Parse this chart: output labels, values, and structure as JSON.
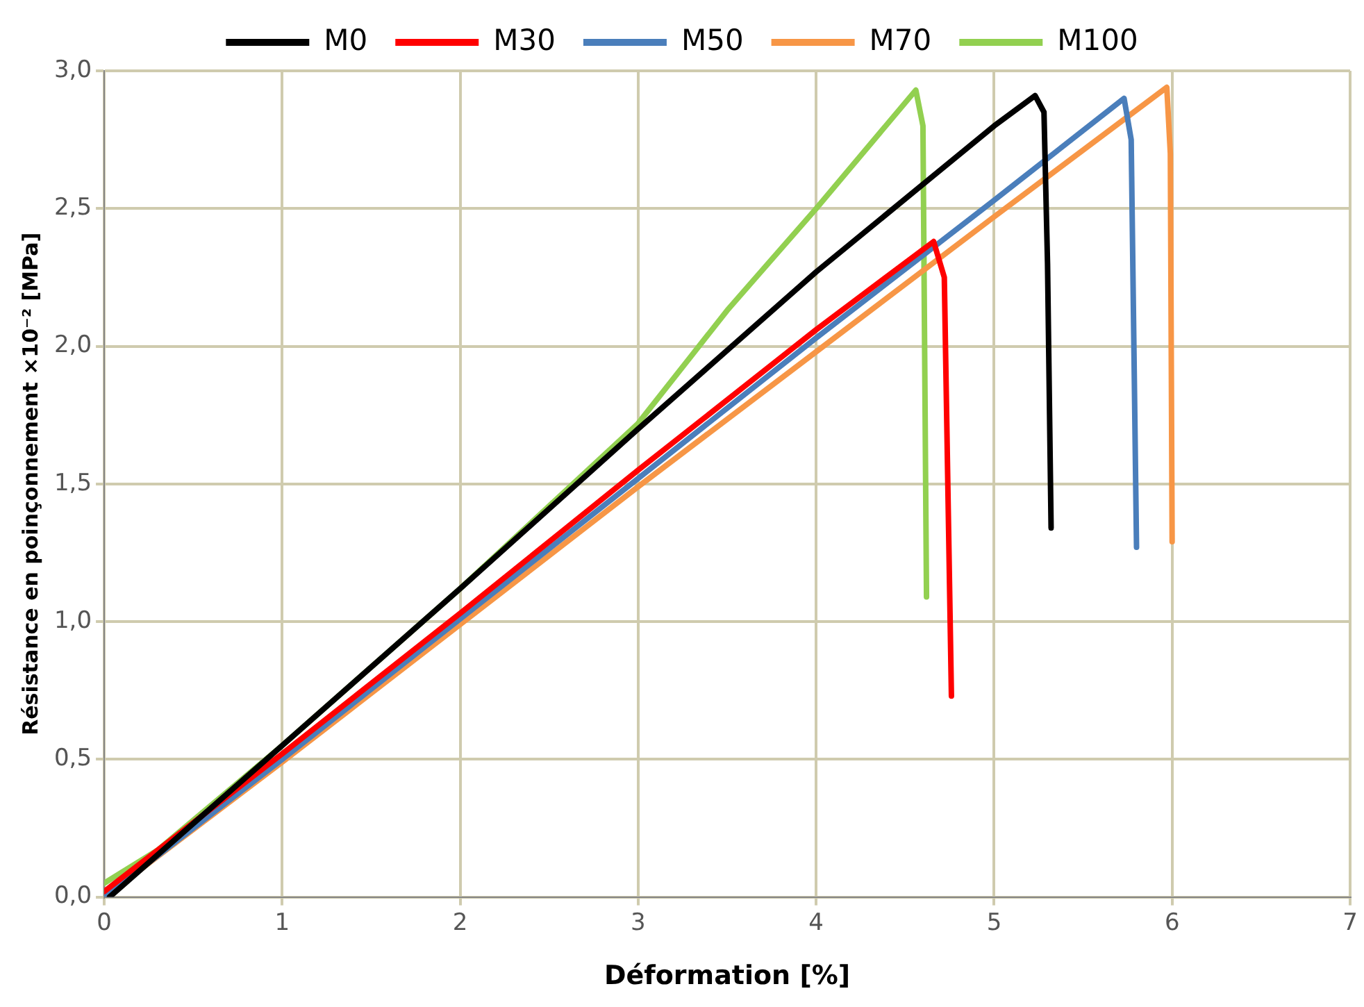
{
  "chart_data": {
    "type": "line",
    "xlabel": "Déformation [%]",
    "ylabel": "Résistance en poinçonnement ×10⁻² [MPa]",
    "xlim": [
      0,
      7
    ],
    "xticks": [
      0,
      1,
      2,
      3,
      4,
      5,
      6,
      7
    ],
    "ylim": [
      0,
      3
    ],
    "yticks": [
      {
        "value": 0,
        "label": "0,0"
      },
      {
        "value": 0.5,
        "label": "0,5"
      },
      {
        "value": 1,
        "label": "1,0"
      },
      {
        "value": 1.5,
        "label": "1,5"
      },
      {
        "value": 2,
        "label": "2,0"
      },
      {
        "value": 2.5,
        "label": "2,5"
      },
      {
        "value": 3,
        "label": "3,0"
      }
    ],
    "grid": true,
    "legend": "top",
    "marker": "none",
    "line_style": "solid",
    "series": [
      {
        "name": "M0",
        "color": "#000000",
        "x": [
          0.03,
          1,
          2,
          3,
          4,
          5,
          5.23,
          5.28,
          5.3,
          5.32
        ],
        "values": [
          0,
          0.55,
          1.12,
          1.7,
          2.27,
          2.8,
          2.91,
          2.85,
          2.3,
          1.34
        ]
      },
      {
        "name": "M30",
        "color": "#ff0000",
        "x": [
          0,
          1,
          2,
          3,
          4,
          4.66,
          4.72,
          4.76
        ],
        "values": [
          0.02,
          0.52,
          1.03,
          1.55,
          2.06,
          2.38,
          2.25,
          0.73
        ]
      },
      {
        "name": "M50",
        "color": "#4a7ebb",
        "x": [
          0,
          1,
          2,
          3,
          4,
          5,
          5.73,
          5.77,
          5.8
        ],
        "values": [
          0,
          0.5,
          1.01,
          1.52,
          2.03,
          2.53,
          2.9,
          2.75,
          1.27
        ]
      },
      {
        "name": "M70",
        "color": "#f79646",
        "x": [
          0,
          1,
          2,
          3,
          4,
          5,
          5.97,
          5.99,
          6
        ],
        "values": [
          0,
          0.49,
          0.99,
          1.49,
          1.98,
          2.47,
          2.94,
          2.7,
          1.29
        ]
      },
      {
        "name": "M100",
        "color": "#92d050",
        "x": [
          0,
          0.3,
          1,
          2,
          3,
          3.5,
          4,
          4.56,
          4.6,
          4.62
        ],
        "values": [
          0.05,
          0.17,
          0.55,
          1.12,
          1.72,
          2.13,
          2.5,
          2.93,
          2.8,
          1.09
        ]
      }
    ]
  }
}
